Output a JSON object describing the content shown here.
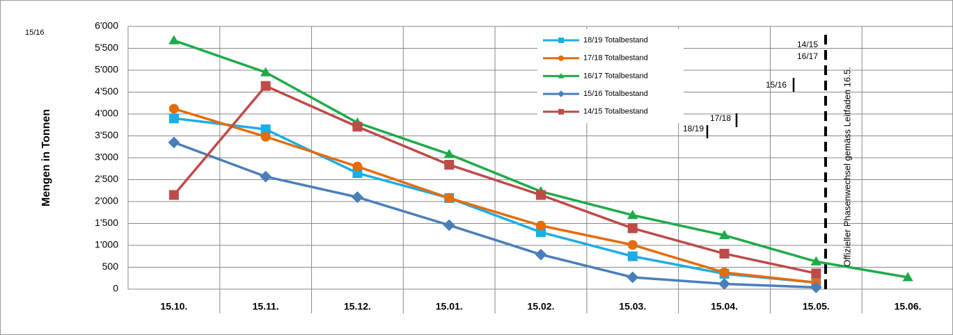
{
  "chart_data": {
    "type": "line",
    "y_label": "Mengen in Tonnen",
    "categories": [
      "15.10.",
      "15.11.",
      "15.12.",
      "15.01.",
      "15.02.",
      "15.03.",
      "15.04.",
      "15.05.",
      "15.06."
    ],
    "series": [
      {
        "name": "18/19 Totalbestand",
        "color": "#1cade4",
        "marker": "square",
        "values": [
          3900,
          3650,
          2650,
          2080,
          1300,
          750,
          350,
          150,
          null
        ]
      },
      {
        "name": "17/18 Totalbestand",
        "color": "#e46c0a",
        "marker": "circle",
        "values": [
          4120,
          3480,
          2800,
          2080,
          1450,
          1010,
          380,
          150,
          null
        ]
      },
      {
        "name": "16/17 Totalbestand",
        "color": "#1faa4a",
        "marker": "triangle",
        "values": [
          5680,
          4950,
          3800,
          3080,
          2230,
          1690,
          1230,
          630,
          270
        ]
      },
      {
        "name": "15/16 Totalbestand",
        "color": "#4a7ebb",
        "marker": "diamond",
        "values": [
          3350,
          2570,
          2100,
          1460,
          790,
          270,
          120,
          40,
          null
        ]
      },
      {
        "name": "14/15 Totalbestand",
        "color": "#be4b48",
        "marker": "square",
        "values": [
          2150,
          4640,
          3710,
          2840,
          2150,
          1390,
          810,
          360,
          null
        ]
      }
    ],
    "ylim": [
      0,
      6000
    ],
    "yticks": [
      0,
      500,
      {
        "value": 1000,
        "label": "1'000"
      },
      {
        "value": 1500,
        "label": "1'500"
      },
      {
        "value": 2000,
        "label": "2'000"
      },
      {
        "value": 2500,
        "label": "2'500"
      },
      {
        "value": 3000,
        "label": "3'000"
      },
      {
        "value": 3500,
        "label": "3'500"
      },
      {
        "value": 4000,
        "label": "4'000"
      },
      {
        "value": 4500,
        "label": "4'500"
      },
      {
        "value": 5000,
        "label": "5'000"
      },
      {
        "value": 5500,
        "label": "5'500"
      },
      {
        "value": 6000,
        "label": "6'000"
      }
    ],
    "grid": true,
    "annotations": [
      "15/16",
      "14/15",
      "16/17",
      "15/16",
      "17/18",
      "18/19",
      "Offizieller Phasenwechsel gemäss Leitfaden 16.5."
    ]
  }
}
